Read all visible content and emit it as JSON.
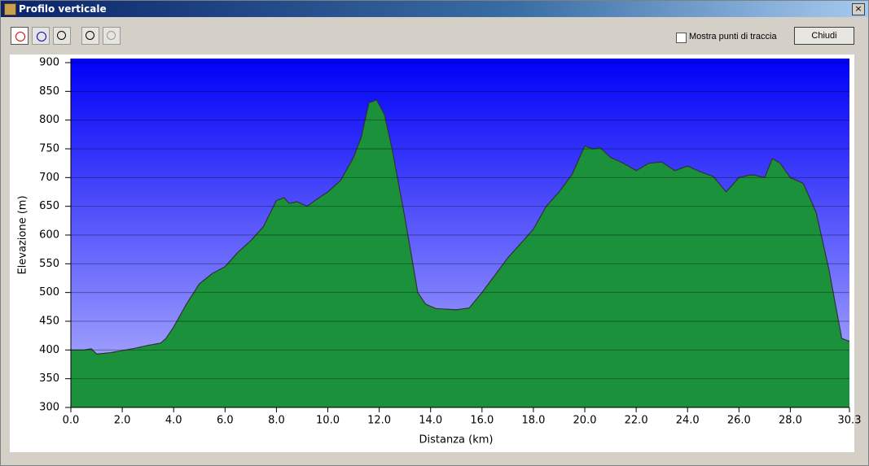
{
  "window": {
    "title": "Profilo verticale",
    "checkbox_label": "Mostra punti di traccia",
    "button": "Chiudi"
  },
  "chart_data": {
    "type": "area",
    "x_label": "Distanza   (km)",
    "y_label": "Elevazione (m)",
    "x": [
      0,
      0.5,
      0.8,
      1.0,
      1.5,
      2.0,
      2.5,
      3.0,
      3.5,
      3.7,
      4.0,
      4.5,
      5.0,
      5.5,
      6.0,
      6.5,
      7.0,
      7.5,
      8.0,
      8.3,
      8.5,
      8.8,
      9.2,
      9.5,
      10.0,
      10.5,
      11.0,
      11.3,
      11.6,
      11.9,
      12.2,
      12.5,
      13.0,
      13.5,
      13.8,
      14.2,
      15.0,
      15.5,
      16.0,
      16.5,
      17.0,
      17.5,
      18.0,
      18.5,
      19.0,
      19.5,
      20.0,
      20.3,
      20.6,
      21.0,
      21.5,
      22.0,
      22.5,
      23.0,
      23.5,
      24.0,
      24.5,
      25.0,
      25.5,
      26.0,
      26.5,
      27.0,
      27.3,
      27.6,
      28.0,
      28.5,
      29.0,
      29.5,
      30.0,
      30.3
    ],
    "values": [
      400,
      400,
      402,
      393,
      395,
      399,
      403,
      408,
      412,
      420,
      440,
      480,
      515,
      533,
      545,
      570,
      590,
      615,
      660,
      665,
      655,
      658,
      650,
      660,
      675,
      695,
      735,
      770,
      830,
      835,
      810,
      750,
      630,
      500,
      480,
      472,
      470,
      473,
      500,
      530,
      560,
      585,
      610,
      650,
      675,
      705,
      755,
      750,
      752,
      735,
      725,
      712,
      725,
      727,
      712,
      720,
      710,
      702,
      675,
      700,
      705,
      700,
      733,
      725,
      700,
      690,
      640,
      540,
      420,
      415
    ],
    "xlim": [
      0,
      30.3
    ],
    "ylim": [
      300,
      900
    ],
    "xticks": [
      {
        "value": 0,
        "label": "0.0"
      },
      {
        "value": 2,
        "label": "2.0"
      },
      {
        "value": 4,
        "label": "4.0"
      },
      {
        "value": 6,
        "label": "6.0"
      },
      {
        "value": 8,
        "label": "8.0"
      },
      {
        "value": 10,
        "label": "10.0"
      },
      {
        "value": 12,
        "label": "12.0"
      },
      {
        "value": 14,
        "label": "14.0"
      },
      {
        "value": 16,
        "label": "16.0"
      },
      {
        "value": 18,
        "label": "18.0"
      },
      {
        "value": 20,
        "label": "20.0"
      },
      {
        "value": 22,
        "label": "22.0"
      },
      {
        "value": 24,
        "label": "24.0"
      },
      {
        "value": 26,
        "label": "26.0"
      },
      {
        "value": 28,
        "label": "28.0"
      },
      {
        "value": 30.3,
        "label": "30.3"
      }
    ],
    "yticks": [
      300,
      350,
      400,
      450,
      500,
      550,
      600,
      650,
      700,
      750,
      800,
      850,
      900
    ],
    "grid": true,
    "color": "#1fa045"
  }
}
